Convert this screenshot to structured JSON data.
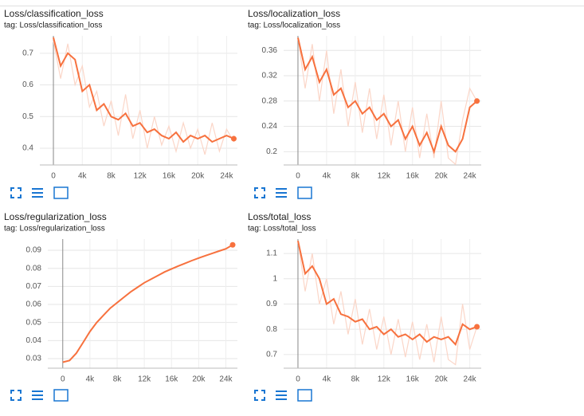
{
  "chart_data": [
    {
      "type": "line",
      "title": "Loss/classification_loss",
      "subtitle": "tag: Loss/classification_loss",
      "x": [
        0,
        1000,
        2000,
        3000,
        4000,
        5000,
        6000,
        7000,
        8000,
        9000,
        10000,
        11000,
        12000,
        13000,
        14000,
        15000,
        16000,
        17000,
        18000,
        19000,
        20000,
        21000,
        22000,
        23000,
        24000,
        25000
      ],
      "series": [
        {
          "color": "#fbd6c8",
          "values": [
            0.74,
            0.62,
            0.73,
            0.6,
            0.66,
            0.53,
            0.58,
            0.47,
            0.55,
            0.44,
            0.57,
            0.43,
            0.52,
            0.4,
            0.5,
            0.41,
            0.47,
            0.39,
            0.48,
            0.4,
            0.46,
            0.38,
            0.48,
            0.39,
            0.46,
            0.42
          ]
        },
        {
          "color": "#f7713e",
          "values": [
            0.75,
            0.66,
            0.7,
            0.68,
            0.58,
            0.6,
            0.52,
            0.54,
            0.5,
            0.49,
            0.51,
            0.47,
            0.48,
            0.45,
            0.46,
            0.44,
            0.43,
            0.45,
            0.42,
            0.44,
            0.43,
            0.44,
            0.42,
            0.43,
            0.44,
            0.43
          ]
        }
      ],
      "xlim": [
        -1880,
        25500
      ],
      "ylim": [
        0.347,
        0.755
      ],
      "xticks": [
        0,
        {
          "value": 4000,
          "label": "4k"
        },
        {
          "value": 8000,
          "label": "8k"
        },
        {
          "value": 12000,
          "label": "12k"
        },
        {
          "value": 16000,
          "label": "16k"
        },
        {
          "value": 20000,
          "label": "20k"
        },
        {
          "value": 24000,
          "label": "24k"
        }
      ],
      "yticks": [
        0.4,
        0.5,
        0.6,
        0.7
      ],
      "grid": true
    },
    {
      "type": "line",
      "title": "Loss/localization_loss",
      "subtitle": "tag: Loss/localization_loss",
      "x": [
        0,
        1000,
        2000,
        3000,
        4000,
        5000,
        6000,
        7000,
        8000,
        9000,
        10000,
        11000,
        12000,
        13000,
        14000,
        15000,
        16000,
        17000,
        18000,
        19000,
        20000,
        21000,
        22000,
        23000,
        24000,
        25000
      ],
      "series": [
        {
          "color": "#fbd6c8",
          "values": [
            0.38,
            0.3,
            0.37,
            0.28,
            0.36,
            0.26,
            0.33,
            0.24,
            0.31,
            0.23,
            0.3,
            0.22,
            0.29,
            0.21,
            0.28,
            0.2,
            0.27,
            0.19,
            0.26,
            0.19,
            0.28,
            0.19,
            0.18,
            0.25,
            0.3,
            0.28
          ]
        },
        {
          "color": "#f7713e",
          "values": [
            0.38,
            0.33,
            0.35,
            0.31,
            0.33,
            0.29,
            0.3,
            0.27,
            0.28,
            0.26,
            0.27,
            0.25,
            0.26,
            0.24,
            0.25,
            0.22,
            0.24,
            0.21,
            0.23,
            0.2,
            0.24,
            0.21,
            0.2,
            0.22,
            0.27,
            0.28
          ]
        }
      ],
      "xlim": [
        -2000,
        25600
      ],
      "ylim": [
        0.179,
        0.383
      ],
      "xticks": [
        0,
        {
          "value": 4000,
          "label": "4k"
        },
        {
          "value": 8000,
          "label": "8k"
        },
        {
          "value": 12000,
          "label": "12k"
        },
        {
          "value": 16000,
          "label": "16k"
        },
        {
          "value": 20000,
          "label": "20k"
        },
        {
          "value": 24000,
          "label": "24k"
        }
      ],
      "yticks": [
        0.2,
        0.24,
        0.28,
        0.32,
        0.36
      ],
      "grid": true
    },
    {
      "type": "line",
      "title": "Loss/regularization_loss",
      "subtitle": "tag: Loss/regularization_loss",
      "x": [
        0,
        1000,
        2000,
        3000,
        4000,
        5000,
        6000,
        7000,
        8000,
        9000,
        10000,
        11000,
        12000,
        13000,
        14000,
        15000,
        16000,
        17000,
        18000,
        19000,
        20000,
        21000,
        22000,
        23000,
        24000,
        25000
      ],
      "series": [
        {
          "color": "#f7713e",
          "values": [
            0.028,
            0.029,
            0.033,
            0.039,
            0.045,
            0.05,
            0.054,
            0.058,
            0.061,
            0.064,
            0.067,
            0.0695,
            0.072,
            0.074,
            0.076,
            0.078,
            0.0797,
            0.0813,
            0.0828,
            0.0843,
            0.0857,
            0.087,
            0.0883,
            0.0896,
            0.0908,
            0.093
          ]
        }
      ],
      "xlim": [
        -2200,
        25700
      ],
      "ylim": [
        0.0247,
        0.0962
      ],
      "xticks": [
        0,
        {
          "value": 4000,
          "label": "4k"
        },
        {
          "value": 8000,
          "label": "8k"
        },
        {
          "value": 12000,
          "label": "12k"
        },
        {
          "value": 16000,
          "label": "16k"
        },
        {
          "value": 20000,
          "label": "20k"
        },
        {
          "value": 24000,
          "label": "24k"
        }
      ],
      "yticks": [
        0.03,
        0.04,
        0.05,
        0.06,
        0.07,
        0.08,
        0.09
      ],
      "grid": true
    },
    {
      "type": "line",
      "title": "Loss/total_loss",
      "subtitle": "tag: Loss/total_loss",
      "x": [
        0,
        1000,
        2000,
        3000,
        4000,
        5000,
        6000,
        7000,
        8000,
        9000,
        10000,
        11000,
        12000,
        13000,
        14000,
        15000,
        16000,
        17000,
        18000,
        19000,
        20000,
        21000,
        22000,
        23000,
        24000,
        25000
      ],
      "series": [
        {
          "color": "#fbd6c8",
          "values": [
            1.15,
            0.95,
            1.1,
            0.9,
            1.0,
            0.82,
            0.95,
            0.78,
            0.92,
            0.74,
            0.88,
            0.72,
            0.85,
            0.7,
            0.84,
            0.69,
            0.83,
            0.68,
            0.82,
            0.67,
            0.85,
            0.68,
            0.66,
            0.9,
            0.72,
            0.81
          ]
        },
        {
          "color": "#f7713e",
          "values": [
            1.15,
            1.02,
            1.05,
            1.0,
            0.9,
            0.92,
            0.86,
            0.85,
            0.83,
            0.84,
            0.8,
            0.81,
            0.78,
            0.8,
            0.77,
            0.78,
            0.76,
            0.78,
            0.75,
            0.77,
            0.76,
            0.77,
            0.74,
            0.82,
            0.8,
            0.81
          ]
        }
      ],
      "xlim": [
        -2000,
        25600
      ],
      "ylim": [
        0.646,
        1.157
      ],
      "xticks": [
        0,
        {
          "value": 4000,
          "label": "4k"
        },
        {
          "value": 8000,
          "label": "8k"
        },
        {
          "value": 12000,
          "label": "12k"
        },
        {
          "value": 16000,
          "label": "16k"
        },
        {
          "value": 20000,
          "label": "20k"
        },
        {
          "value": 24000,
          "label": "24k"
        }
      ],
      "yticks": [
        0.7,
        0.8,
        0.9,
        1,
        1.1
      ],
      "grid": true
    }
  ]
}
